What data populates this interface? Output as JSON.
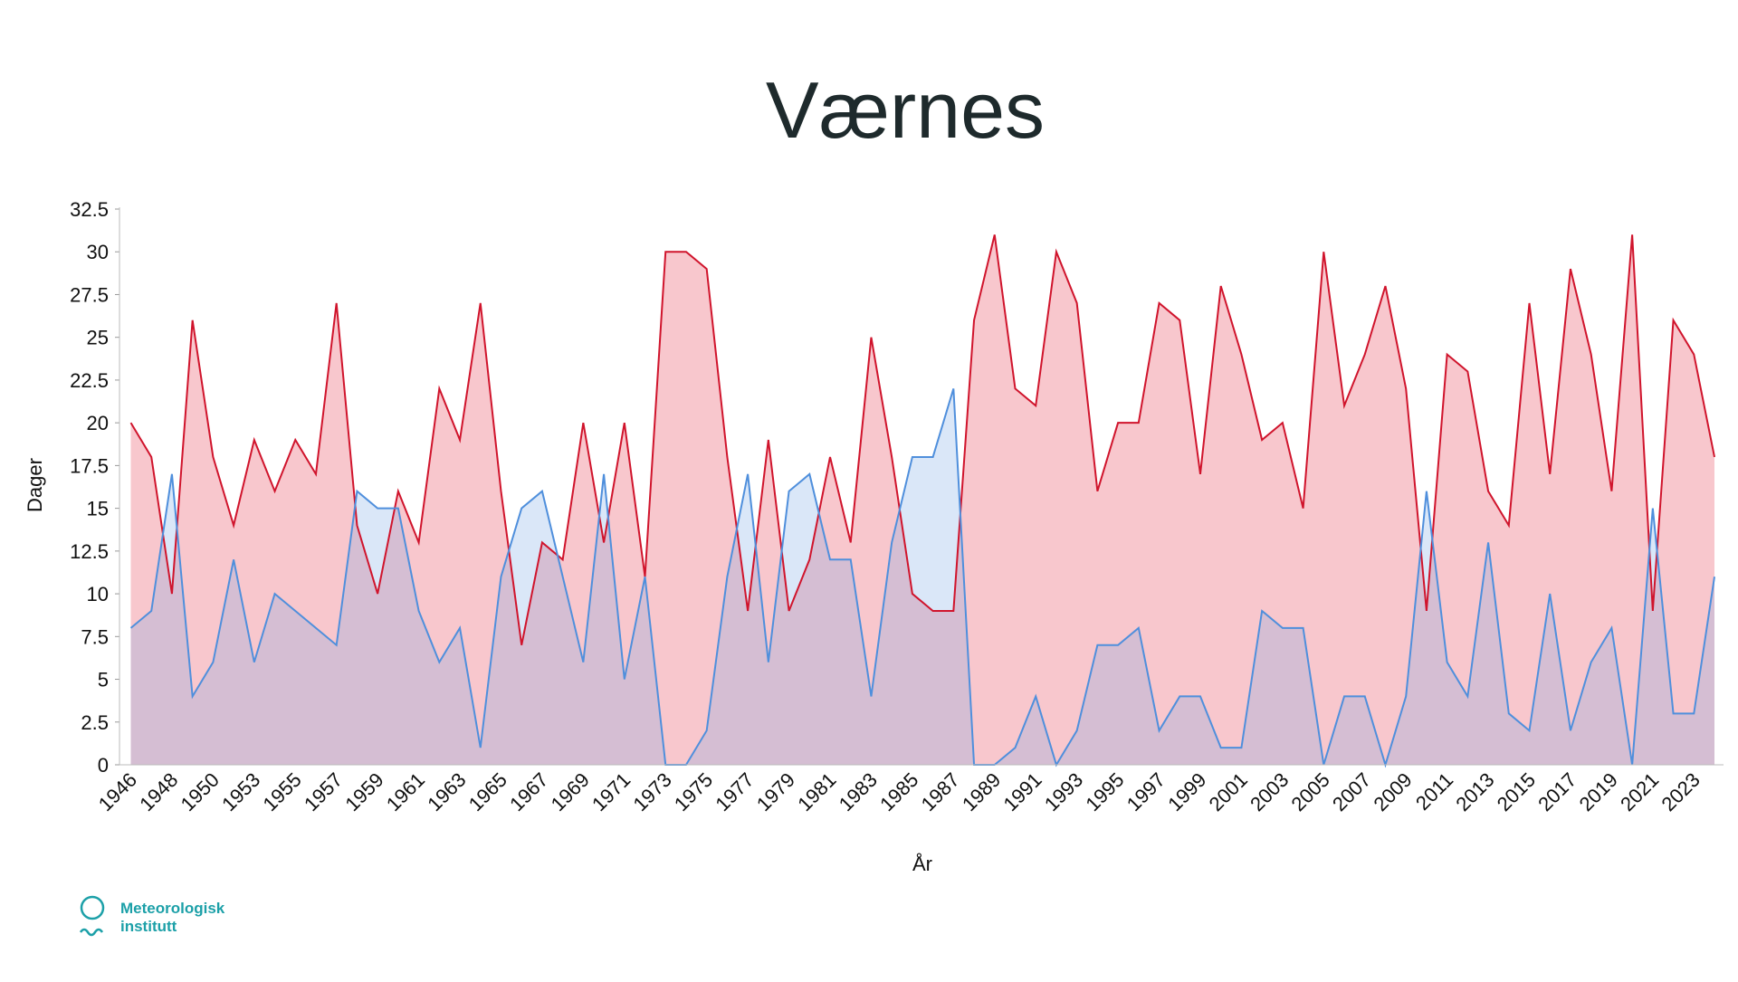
{
  "chart_data": {
    "type": "area",
    "title": "Værnes",
    "x_label": "År",
    "y_label": "Dager",
    "categories": [
      "1946",
      null,
      "1948",
      null,
      "1950",
      null,
      "1953",
      null,
      "1955",
      null,
      "1957",
      null,
      "1959",
      null,
      "1961",
      null,
      "1963",
      null,
      "1965",
      null,
      "1967",
      null,
      "1969",
      null,
      "1971",
      null,
      "1973",
      null,
      "1975",
      null,
      "1977",
      null,
      "1979",
      null,
      "1981",
      null,
      "1983",
      null,
      "1985",
      null,
      "1987",
      null,
      "1989",
      null,
      "1991",
      null,
      "1993",
      null,
      "1995",
      null,
      "1997",
      null,
      "1999",
      null,
      "2001",
      null,
      "2003",
      null,
      "2005",
      null,
      "2007",
      null,
      "2009",
      null,
      "2011",
      null,
      "2013",
      null,
      "2015",
      null,
      "2017",
      null,
      "2019",
      null,
      "2021",
      null,
      "2023",
      null
    ],
    "series": [
      {
        "color": "#d0142c",
        "fill": "rgba(232,70,90,0.30)",
        "values": [
          20,
          18,
          10,
          26,
          18,
          14,
          19,
          16,
          19,
          17,
          27,
          14,
          10,
          16,
          13,
          22,
          19,
          27,
          16,
          7,
          13,
          12,
          20,
          13,
          20,
          11,
          30,
          30,
          29,
          18,
          9,
          19,
          9,
          12,
          18,
          13,
          25,
          18,
          10,
          9,
          9,
          26,
          31,
          22,
          21,
          30,
          27,
          16,
          20,
          20,
          27,
          26,
          17,
          28,
          24,
          19,
          20,
          15,
          30,
          21,
          24,
          28,
          22,
          9,
          24,
          23,
          16,
          14,
          27,
          17,
          29,
          24,
          16,
          31,
          9,
          26,
          24,
          18
        ]
      },
      {
        "color": "#4f8fdc",
        "fill": "rgba(120,165,230,0.27)",
        "values": [
          8,
          9,
          17,
          4,
          6,
          12,
          6,
          10,
          9,
          8,
          7,
          16,
          15,
          15,
          9,
          6,
          8,
          1,
          11,
          15,
          16,
          11,
          6,
          17,
          5,
          11,
          0,
          0,
          2,
          11,
          17,
          6,
          16,
          17,
          12,
          12,
          4,
          13,
          18,
          18,
          22,
          0,
          0,
          1,
          4,
          0,
          2,
          7,
          7,
          8,
          2,
          4,
          4,
          1,
          1,
          9,
          8,
          8,
          0,
          4,
          4,
          0,
          4,
          16,
          6,
          4,
          13,
          3,
          2,
          10,
          2,
          6,
          8,
          0,
          15,
          3,
          3,
          11
        ]
      }
    ],
    "ylim": [
      0,
      32.5
    ],
    "yticks": [
      0,
      2.5,
      5,
      7.5,
      10,
      12.5,
      15,
      17.5,
      20,
      22.5,
      25,
      27.5,
      30,
      32.5
    ],
    "logo": [
      "Meteorologisk",
      "institutt"
    ]
  }
}
